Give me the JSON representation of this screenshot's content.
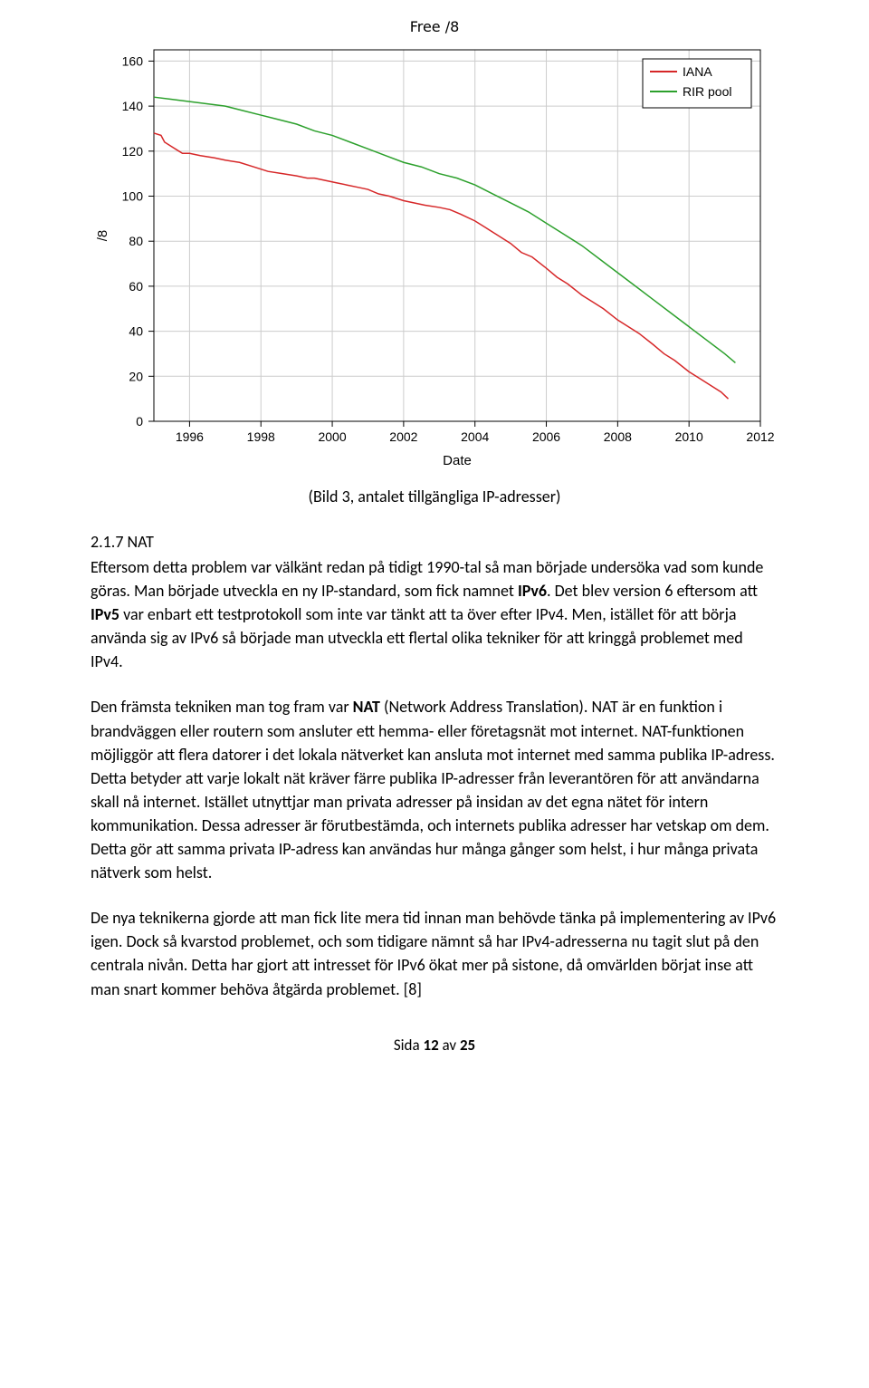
{
  "chart": {
    "type": "line",
    "title": "Free /8",
    "x_label": "Date",
    "y_label": "/8",
    "title_fontsize": 16,
    "label_fontsize": 15,
    "tick_fontsize": 14,
    "background_color": "#ffffff",
    "plot_background": "#ffffff",
    "grid_color": "#cccccc",
    "axis_color": "#000000",
    "legend_border": "#000000",
    "legend_bg": "#ffffff",
    "legend_position": "top-right",
    "line_width": 1.5,
    "xlim": [
      1995,
      2012
    ],
    "ylim": [
      0,
      165
    ],
    "xticks": [
      1996,
      1998,
      2000,
      2002,
      2004,
      2006,
      2008,
      2010,
      2012
    ],
    "yticks": [
      0,
      20,
      40,
      60,
      80,
      100,
      120,
      140,
      160
    ],
    "series": [
      {
        "name": "IANA",
        "color": "#d62728",
        "data": [
          [
            1995.0,
            128
          ],
          [
            1995.2,
            127
          ],
          [
            1995.3,
            124
          ],
          [
            1995.5,
            122
          ],
          [
            1995.7,
            120
          ],
          [
            1995.8,
            119
          ],
          [
            1996.0,
            119
          ],
          [
            1996.3,
            118
          ],
          [
            1996.7,
            117
          ],
          [
            1997.0,
            116
          ],
          [
            1997.4,
            115
          ],
          [
            1997.8,
            113
          ],
          [
            1998.2,
            111
          ],
          [
            1998.6,
            110
          ],
          [
            1999.0,
            109
          ],
          [
            1999.3,
            108
          ],
          [
            1999.5,
            108
          ],
          [
            1999.8,
            107
          ],
          [
            2000.1,
            106
          ],
          [
            2000.4,
            105
          ],
          [
            2000.7,
            104
          ],
          [
            2001.0,
            103
          ],
          [
            2001.3,
            101
          ],
          [
            2001.6,
            100
          ],
          [
            2002.0,
            98
          ],
          [
            2002.3,
            97
          ],
          [
            2002.6,
            96
          ],
          [
            2003.0,
            95
          ],
          [
            2003.3,
            94
          ],
          [
            2003.6,
            92
          ],
          [
            2004.0,
            89
          ],
          [
            2004.3,
            86
          ],
          [
            2004.6,
            83
          ],
          [
            2005.0,
            79
          ],
          [
            2005.3,
            75
          ],
          [
            2005.6,
            73
          ],
          [
            2006.0,
            68
          ],
          [
            2006.3,
            64
          ],
          [
            2006.6,
            61
          ],
          [
            2007.0,
            56
          ],
          [
            2007.3,
            53
          ],
          [
            2007.6,
            50
          ],
          [
            2008.0,
            45
          ],
          [
            2008.3,
            42
          ],
          [
            2008.6,
            39
          ],
          [
            2009.0,
            34
          ],
          [
            2009.3,
            30
          ],
          [
            2009.6,
            27
          ],
          [
            2010.0,
            22
          ],
          [
            2010.3,
            19
          ],
          [
            2010.6,
            16
          ],
          [
            2010.9,
            13
          ],
          [
            2011.1,
            10
          ]
        ]
      },
      {
        "name": "RIR pool",
        "color": "#2ca02c",
        "data": [
          [
            1995.0,
            144
          ],
          [
            1995.5,
            143
          ],
          [
            1996.0,
            142
          ],
          [
            1996.5,
            141
          ],
          [
            1997.0,
            140
          ],
          [
            1997.5,
            138
          ],
          [
            1998.0,
            136
          ],
          [
            1998.5,
            134
          ],
          [
            1999.0,
            132
          ],
          [
            1999.5,
            129
          ],
          [
            2000.0,
            127
          ],
          [
            2000.5,
            124
          ],
          [
            2001.0,
            121
          ],
          [
            2001.5,
            118
          ],
          [
            2002.0,
            115
          ],
          [
            2002.5,
            113
          ],
          [
            2003.0,
            110
          ],
          [
            2003.5,
            108
          ],
          [
            2004.0,
            105
          ],
          [
            2004.5,
            101
          ],
          [
            2005.0,
            97
          ],
          [
            2005.5,
            93
          ],
          [
            2006.0,
            88
          ],
          [
            2006.5,
            83
          ],
          [
            2007.0,
            78
          ],
          [
            2007.5,
            72
          ],
          [
            2008.0,
            66
          ],
          [
            2008.5,
            60
          ],
          [
            2009.0,
            54
          ],
          [
            2009.5,
            48
          ],
          [
            2010.0,
            42
          ],
          [
            2010.5,
            36
          ],
          [
            2011.0,
            30
          ],
          [
            2011.3,
            26
          ]
        ]
      }
    ]
  },
  "caption": "(Bild 3, antalet tillgängliga IP-adresser)",
  "heading": "2.1.7 NAT",
  "para1_a": "Eftersom detta problem var välkänt redan på tidigt 1990-tal så man började undersöka vad som kunde göras. Man började utveckla en ny IP-standard, som fick namnet ",
  "para1_bold1": "IPv6",
  "para1_b": ". Det blev version 6 eftersom att ",
  "para1_bold2": "IPv5",
  "para1_c": " var enbart ett testprotokoll som inte var tänkt att ta över efter IPv4. Men, istället för att börja använda sig av IPv6 så började man utveckla ett flertal olika tekniker för att kringgå problemet med IPv4.",
  "para2_a": "Den främsta tekniken man tog fram var ",
  "para2_bold": "NAT",
  "para2_b": " (Network Address Translation). NAT är en funktion i brandväggen eller routern som ansluter ett hemma- eller företagsnät mot internet. NAT-funktionen möjliggör att flera datorer i det lokala nätverket kan ansluta mot internet med samma publika IP-adress. Detta betyder att varje lokalt nät kräver färre publika IP-adresser från leverantören för att användarna skall nå internet. Istället utnyttjar man privata adresser på insidan av det egna nätet för intern kommunikation. Dessa adresser är förutbestämda, och internets publika adresser har vetskap om dem. Detta gör att samma privata IP-adress kan användas hur många gånger som helst, i hur många privata nätverk som helst.",
  "para3": "De nya teknikerna gjorde att man fick lite mera tid innan man behövde tänka på implementering av IPv6 igen. Dock så kvarstod problemet, och som tidigare nämnt så har IPv4-adresserna nu tagit slut på den centrala nivån. Detta har gjort att intresset för IPv6 ökat mer på sistone, då omvärlden börjat inse att man snart kommer behöva åtgärda problemet. [8]",
  "footer_a": "Sida ",
  "footer_bold": "12",
  "footer_b": " av ",
  "footer_c": "25"
}
